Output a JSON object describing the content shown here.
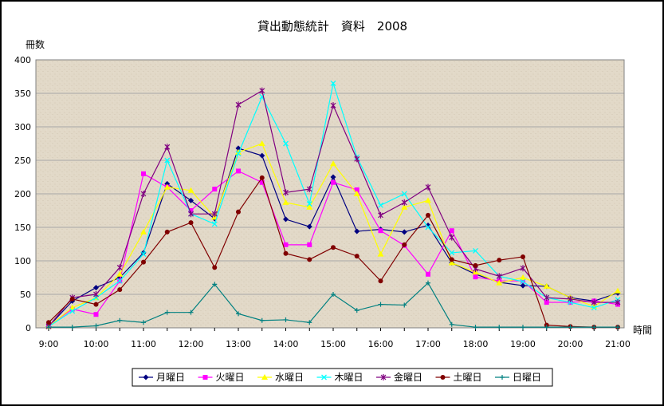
{
  "chart_data": {
    "type": "line",
    "title": "貸出動態統計　資料　2008",
    "ylabel": "冊数",
    "xlabel": "時間",
    "ylim": [
      0,
      400
    ],
    "yticks": [
      0,
      50,
      100,
      150,
      200,
      250,
      300,
      350,
      400
    ],
    "x": [
      "9:00",
      "9:30",
      "10:00",
      "10:30",
      "11:00",
      "11:30",
      "12:00",
      "12:30",
      "13:00",
      "13:30",
      "14:00",
      "14:30",
      "15:00",
      "15:30",
      "16:00",
      "16:30",
      "17:00",
      "17:30",
      "18:00",
      "18:30",
      "19:00",
      "19:30",
      "20:00",
      "20:30",
      "21:00"
    ],
    "xtick_labels": [
      "9:00",
      "10:00",
      "11:00",
      "12:00",
      "13:00",
      "14:00",
      "15:00",
      "16:00",
      "17:00",
      "18:00",
      "19:00",
      "20:00",
      "21:00"
    ],
    "grid": true,
    "legend_position": "bottom",
    "series": [
      {
        "name": "月曜日",
        "color": "#000080",
        "marker": "diamond",
        "values": [
          2,
          40,
          60,
          75,
          112,
          215,
          190,
          163,
          268,
          257,
          162,
          151,
          225,
          144,
          147,
          143,
          153,
          97,
          80,
          68,
          63,
          62,
          45,
          40,
          52
        ]
      },
      {
        "name": "火曜日",
        "color": "#FF00FF",
        "marker": "square",
        "values": [
          3,
          28,
          20,
          70,
          230,
          210,
          175,
          207,
          234,
          217,
          124,
          124,
          217,
          206,
          145,
          123,
          80,
          145,
          76,
          70,
          70,
          38,
          38,
          40,
          35
        ]
      },
      {
        "name": "水曜日",
        "color": "#FFFF00",
        "marker": "triangle",
        "values": [
          2,
          30,
          45,
          80,
          143,
          210,
          205,
          165,
          262,
          275,
          187,
          180,
          245,
          200,
          110,
          180,
          190,
          97,
          83,
          67,
          75,
          62,
          45,
          32,
          55
        ]
      },
      {
        "name": "木曜日",
        "color": "#00FFFF",
        "marker": "x",
        "values": [
          2,
          25,
          45,
          70,
          110,
          250,
          170,
          155,
          260,
          345,
          275,
          185,
          365,
          255,
          183,
          200,
          150,
          112,
          115,
          77,
          69,
          45,
          38,
          30,
          42
        ]
      },
      {
        "name": "金曜日",
        "color": "#800080",
        "marker": "star",
        "values": [
          2,
          45,
          50,
          90,
          200,
          270,
          170,
          170,
          333,
          354,
          202,
          207,
          332,
          252,
          168,
          187,
          210,
          135,
          88,
          77,
          89,
          45,
          43,
          38,
          38
        ]
      },
      {
        "name": "土曜日",
        "color": "#800000",
        "marker": "circle",
        "values": [
          8,
          43,
          35,
          57,
          98,
          143,
          157,
          90,
          173,
          224,
          111,
          102,
          120,
          107,
          70,
          124,
          168,
          102,
          93,
          101,
          106,
          4,
          2,
          1,
          1
        ]
      },
      {
        "name": "日曜日",
        "color": "#008080",
        "marker": "plus",
        "values": [
          1,
          1,
          3,
          11,
          8,
          23,
          23,
          65,
          21,
          11,
          12,
          8,
          50,
          26,
          35,
          34,
          67,
          5,
          1,
          1,
          1,
          1,
          1,
          1,
          1
        ]
      }
    ]
  }
}
